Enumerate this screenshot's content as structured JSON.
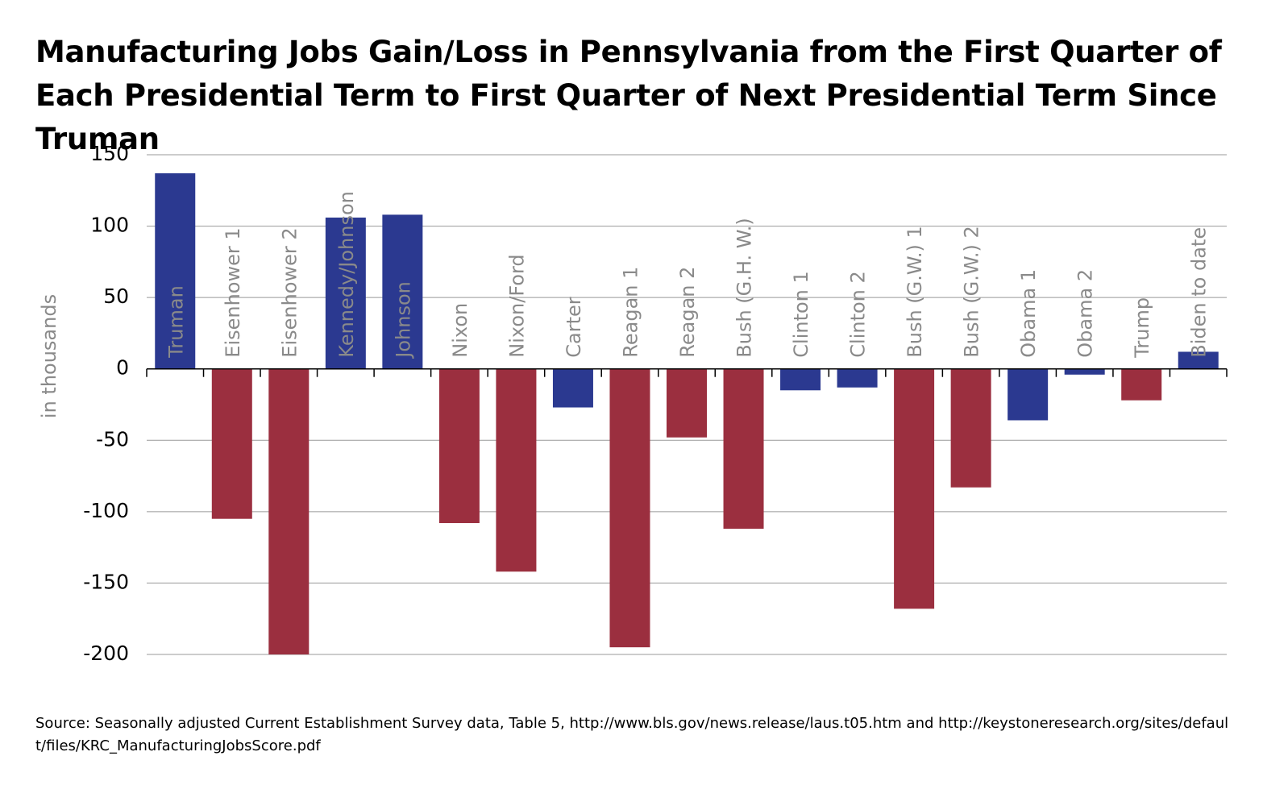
{
  "chart_data": {
    "type": "bar",
    "title": "Manufacturing Jobs Gain/Loss in Pennsylvania from the First Quarter of Each Presidential Term to First Quarter of Next Presidential Term Since Truman",
    "y_label": "in thousands",
    "source": "Source: Seasonally adjusted Current Establishment Survey data, Table 5, http://www.bls.gov/news.release/laus.t05.htm and http://keystoneresearch.org/sites/default/files/KRC_ManufacturingJobsScore.pdf",
    "categories": [
      "Truman",
      "Eisenhower 1",
      "Eisenhower 2",
      "Kennedy/Johnson",
      "Johnson",
      "Nixon",
      "Nixon/Ford",
      "Carter",
      "Reagan 1",
      "Reagan 2",
      "Bush (G.H. W.)",
      "Clinton 1",
      "Clinton 2",
      "Bush (G.W.) 1",
      "Bush (G.W.) 2",
      "Obama 1",
      "Obama 2",
      "Trump",
      "Biden to date"
    ],
    "values": [
      137,
      -105,
      -200,
      106,
      108,
      -108,
      -142,
      -27,
      -195,
      -48,
      -112,
      -15,
      -13,
      -168,
      -83,
      -36,
      -4,
      -22,
      12
    ],
    "colors": [
      "#2b3990",
      "#9b2f3f",
      "#9b2f3f",
      "#2b3990",
      "#2b3990",
      "#9b2f3f",
      "#9b2f3f",
      "#2b3990",
      "#9b2f3f",
      "#9b2f3f",
      "#9b2f3f",
      "#2b3990",
      "#2b3990",
      "#9b2f3f",
      "#9b2f3f",
      "#2b3990",
      "#2b3990",
      "#9b2f3f",
      "#2b3990"
    ],
    "ylim": [
      -200,
      150
    ],
    "yticks": [
      -200,
      -150,
      -100,
      -50,
      0,
      50,
      100,
      150
    ],
    "grid": true
  }
}
